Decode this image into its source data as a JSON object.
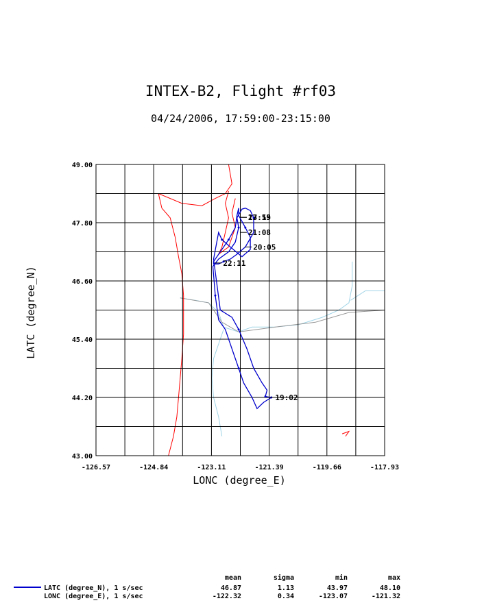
{
  "chart_data": {
    "type": "line",
    "title": "INTEX-B2, Flight #rf03",
    "subtitle": "04/24/2006, 17:59:00-23:15:00",
    "xlabel": "LONC (degree_E)",
    "ylabel": "LATC (degree_N)",
    "xlim": [
      -126.57,
      -117.93
    ],
    "ylim": [
      43.0,
      49.0
    ],
    "xticks": [
      "-126.57",
      "-124.84",
      "-123.11",
      "-121.39",
      "-119.66",
      "-117.93"
    ],
    "yticks": [
      "43.00",
      "44.20",
      "45.40",
      "46.60",
      "47.80",
      "49.00"
    ],
    "grid": true,
    "colors": {
      "track": "#0000cc",
      "coast": "#ff0000",
      "rivers": "#9fd3e6",
      "border": "#999999",
      "grid": "#000000"
    },
    "series": [
      {
        "name": "flight-track",
        "lon": [
          -121.32,
          -121.55,
          -121.75,
          -121.9,
          -122.15,
          -122.3,
          -122.4,
          -122.55,
          -122.7,
          -122.9,
          -123.0,
          -123.07,
          -122.9,
          -122.6,
          -122.4,
          -122.3,
          -122.35,
          -122.2,
          -122.1,
          -121.95,
          -121.85,
          -121.85,
          -122.1,
          -122.35,
          -122.55,
          -122.75,
          -122.9,
          -123.05,
          -123.05,
          -122.85,
          -122.6,
          -122.4,
          -122.35,
          -122.3,
          -122.3,
          -122.1,
          -121.95,
          -121.95,
          -122.2,
          -122.55,
          -122.8,
          -122.9,
          -123.05,
          -122.85,
          -122.5,
          -122.3,
          -122.05,
          -121.85,
          -121.6,
          -121.45,
          -121.5,
          -121.32
        ],
        "lat": [
          44.2,
          44.1,
          43.97,
          44.2,
          44.5,
          44.8,
          45.0,
          45.3,
          45.6,
          45.8,
          46.3,
          46.9,
          47.05,
          47.2,
          47.4,
          47.7,
          47.9,
          48.08,
          48.1,
          48.05,
          47.9,
          47.6,
          47.3,
          47.15,
          47.05,
          47.0,
          46.95,
          46.95,
          47.0,
          47.2,
          47.45,
          47.7,
          47.95,
          48.1,
          47.95,
          47.7,
          47.5,
          47.25,
          47.1,
          47.3,
          47.45,
          47.6,
          47.05,
          46.0,
          45.85,
          45.6,
          45.2,
          44.8,
          44.5,
          44.35,
          44.22,
          44.2
        ]
      }
    ],
    "time_labels": [
      {
        "text": "19:02",
        "lon": -121.39,
        "lat": 44.2
      },
      {
        "text": "20:05",
        "lon": -122.05,
        "lat": 47.3
      },
      {
        "text": "21:08",
        "lon": -122.2,
        "lat": 47.6
      },
      {
        "text": "22:11",
        "lon": -122.95,
        "lat": 46.97
      },
      {
        "text": "23:15",
        "lon": -122.2,
        "lat": 47.91
      },
      {
        "text": "17:59",
        "lon": -122.2,
        "lat": 47.91
      }
    ],
    "stats": {
      "headers": [
        "mean",
        "sigma",
        "min",
        "max"
      ],
      "rows": [
        {
          "label": "LATC (degree_N), 1 s/sec",
          "mean": "46.87",
          "sigma": "1.13",
          "min": "43.97",
          "max": "48.10"
        },
        {
          "label": "LONC (degree_E), 1 s/sec",
          "mean": "-122.32",
          "sigma": "0.34",
          "min": "-123.07",
          "max": "-121.32"
        }
      ]
    }
  }
}
